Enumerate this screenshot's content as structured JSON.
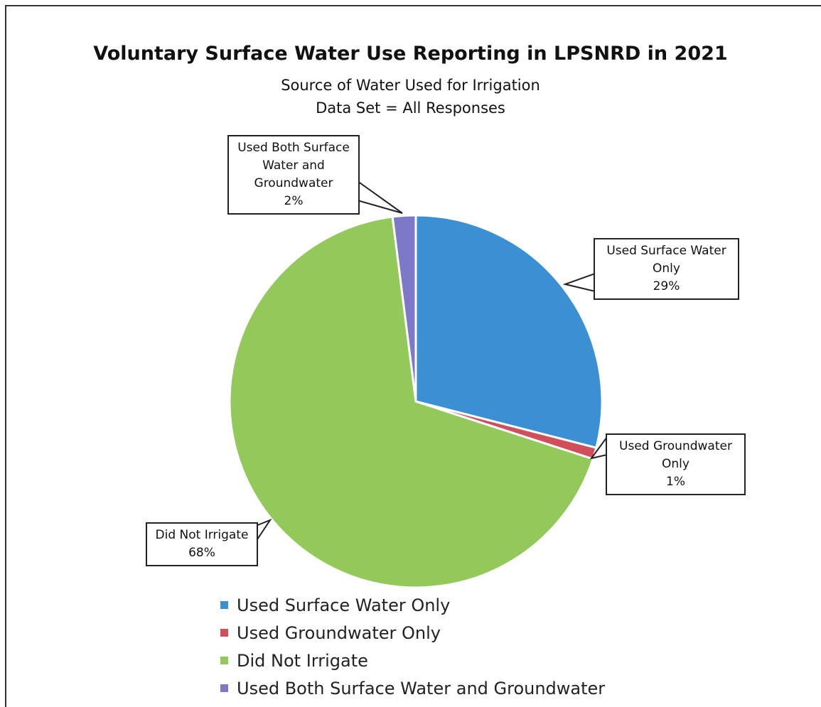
{
  "chart_data": {
    "type": "pie",
    "title": "Voluntary Surface Water Use Reporting in LPSNRD in 2021",
    "subtitle": [
      "Source of Water Used for Irrigation",
      "Data Set = All Responses"
    ],
    "categories": [
      "Used Surface Water Only",
      "Used Groundwater Only",
      "Did Not Irrigate",
      "Used Both Surface Water and Groundwater"
    ],
    "values": [
      29,
      1,
      68,
      2
    ],
    "value_labels": [
      "29%",
      "1%",
      "68%",
      "2%"
    ],
    "colors": [
      "#3b8fd3",
      "#d14f5a",
      "#93c95b",
      "#7e78c9"
    ],
    "legend": "bottom"
  }
}
